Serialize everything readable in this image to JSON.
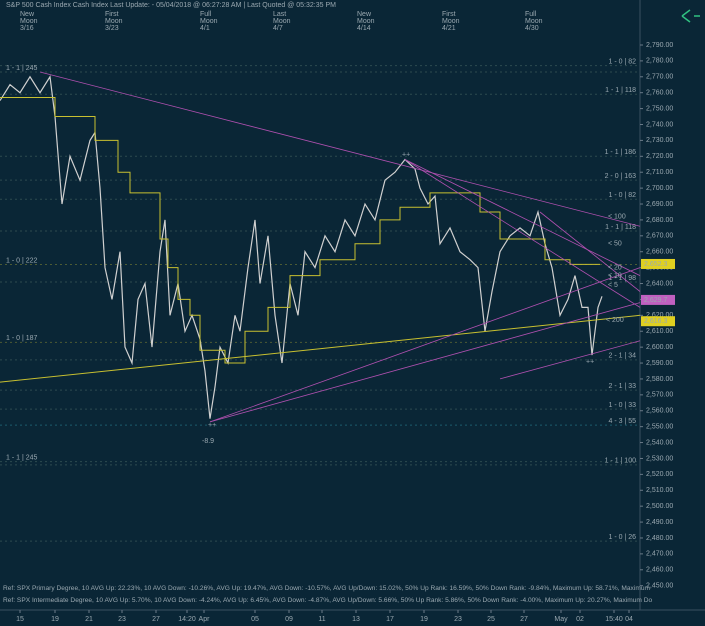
{
  "chart_data": {
    "type": "line",
    "title": "S&P 500 Cash Index   Cash Index   Last Update: - 05/04/2018 @ 06:27:28 AM | Last Quoted @ 05:32:35 PM",
    "moon_phases": [
      {
        "x": 20,
        "lines": [
          "New",
          "Moon",
          "3/16"
        ],
        "color": "#3f8f3f"
      },
      {
        "x": 105,
        "lines": [
          "First",
          "Moon",
          "3/23"
        ],
        "color": "#9aa0a0"
      },
      {
        "x": 200,
        "lines": [
          "Full",
          "Moon",
          "4/1"
        ],
        "color": "#5fd35f"
      },
      {
        "x": 273,
        "lines": [
          "Last",
          "Moon",
          "4/7"
        ],
        "color": "#e0e0e0"
      },
      {
        "x": 357,
        "lines": [
          "New",
          "Moon",
          "4/14"
        ],
        "color": "#3f8f3f"
      },
      {
        "x": 442,
        "lines": [
          "First",
          "Moon",
          "4/21"
        ],
        "color": "#9aa0a0"
      },
      {
        "x": 525,
        "lines": [
          "Full",
          "Moon",
          "4/30"
        ],
        "color": "#5fd35f"
      }
    ],
    "xlim": [
      0,
      640
    ],
    "ylim": [
      2441,
      2812
    ],
    "xticks": [
      {
        "value": 20,
        "label": "15"
      },
      {
        "value": 55,
        "label": "19"
      },
      {
        "value": 89,
        "label": "21"
      },
      {
        "value": 122,
        "label": "23"
      },
      {
        "value": 156,
        "label": "27"
      },
      {
        "value": 187,
        "label": "14:20"
      },
      {
        "value": 204,
        "label": "Apr"
      },
      {
        "value": 255,
        "label": "05"
      },
      {
        "value": 289,
        "label": "09"
      },
      {
        "value": 322,
        "label": "11"
      },
      {
        "value": 356,
        "label": "13"
      },
      {
        "value": 390,
        "label": "17"
      },
      {
        "value": 424,
        "label": "19"
      },
      {
        "value": 458,
        "label": "23"
      },
      {
        "value": 491,
        "label": "25"
      },
      {
        "value": 524,
        "label": "27"
      },
      {
        "value": 561,
        "label": "May"
      },
      {
        "value": 580,
        "label": "02"
      },
      {
        "value": 614,
        "label": "15:40"
      },
      {
        "value": 629,
        "label": "04"
      }
    ],
    "yticks": [
      {
        "value": 2450,
        "label": "2,450.00"
      },
      {
        "value": 2460,
        "label": "2,460.00"
      },
      {
        "value": 2470,
        "label": "2,470.00"
      },
      {
        "value": 2480,
        "label": "2,480.00"
      },
      {
        "value": 2490,
        "label": "2,490.00"
      },
      {
        "value": 2500,
        "label": "2,500.00"
      },
      {
        "value": 2510,
        "label": "2,510.00"
      },
      {
        "value": 2520,
        "label": "2,520.00"
      },
      {
        "value": 2530,
        "label": "2,530.00"
      },
      {
        "value": 2540,
        "label": "2,540.00"
      },
      {
        "value": 2550,
        "label": "2,550.00"
      },
      {
        "value": 2560,
        "label": "2,560.00"
      },
      {
        "value": 2570,
        "label": "2,570.00"
      },
      {
        "value": 2580,
        "label": "2,580.00"
      },
      {
        "value": 2590,
        "label": "2,590.00"
      },
      {
        "value": 2600,
        "label": "2,600.00"
      },
      {
        "value": 2610,
        "label": "2,610.00"
      },
      {
        "value": 2620,
        "label": "2,620.00"
      },
      {
        "value": 2630,
        "label": "2,630.00"
      },
      {
        "value": 2640,
        "label": "2,640.00"
      },
      {
        "value": 2650,
        "label": "2,650.00"
      },
      {
        "value": 2660,
        "label": "2,660.00"
      },
      {
        "value": 2670,
        "label": "2,670.00"
      },
      {
        "value": 2680,
        "label": "2,680.00"
      },
      {
        "value": 2690,
        "label": "2,690.00"
      },
      {
        "value": 2700,
        "label": "2,700.00"
      },
      {
        "value": 2710,
        "label": "2,710.00"
      },
      {
        "value": 2720,
        "label": "2,720.00"
      },
      {
        "value": 2730,
        "label": "2,730.00"
      },
      {
        "value": 2740,
        "label": "2,740.00"
      },
      {
        "value": 2750,
        "label": "2,750.00"
      },
      {
        "value": 2760,
        "label": "2,760.00"
      },
      {
        "value": 2770,
        "label": "2,770.00"
      },
      {
        "value": 2780,
        "label": "2,780.00"
      },
      {
        "value": 2790,
        "label": "2,790.00"
      }
    ],
    "series": [
      {
        "color": "#d0d0d0",
        "width": 1.2,
        "x": [
          0,
          10,
          20,
          30,
          40,
          50,
          55,
          62,
          70,
          80,
          90,
          95,
          100,
          105,
          112,
          120,
          125,
          132,
          138,
          145,
          152,
          160,
          165,
          170,
          178,
          185,
          192,
          200,
          205,
          210,
          215,
          220,
          228,
          235,
          240,
          248,
          255,
          260,
          268,
          275,
          282,
          290,
          298,
          305,
          315,
          325,
          335,
          345,
          355,
          365,
          375,
          385,
          395,
          405,
          415,
          420,
          428,
          435,
          440,
          450,
          460,
          470,
          478,
          485,
          492,
          500,
          510,
          520,
          530,
          538,
          545,
          552,
          560,
          568,
          575,
          582,
          588,
          592,
          598,
          602
        ],
        "values": [
          2755,
          2765,
          2760,
          2770,
          2760,
          2770,
          2745,
          2690,
          2720,
          2705,
          2730,
          2735,
          2700,
          2650,
          2630,
          2660,
          2600,
          2590,
          2630,
          2640,
          2600,
          2660,
          2680,
          2620,
          2640,
          2610,
          2620,
          2605,
          2585,
          2555,
          2575,
          2600,
          2590,
          2620,
          2610,
          2650,
          2680,
          2640,
          2670,
          2620,
          2590,
          2640,
          2620,
          2660,
          2650,
          2670,
          2660,
          2680,
          2670,
          2690,
          2680,
          2705,
          2710,
          2718,
          2712,
          2700,
          2690,
          2695,
          2665,
          2675,
          2660,
          2655,
          2650,
          2610,
          2635,
          2660,
          2670,
          2675,
          2670,
          2685,
          2665,
          2650,
          2620,
          2630,
          2645,
          2625,
          2625,
          2595,
          2625,
          2632
        ]
      },
      {
        "color": "#c8c030",
        "width": 1,
        "x": [
          0,
          55,
          55,
          95,
          95,
          118,
          118,
          130,
          130,
          160,
          160,
          168,
          168,
          178,
          178,
          190,
          190,
          200,
          200,
          225,
          225,
          245,
          245,
          268,
          268,
          290,
          290,
          320,
          320,
          355,
          355,
          380,
          380,
          400,
          400,
          430,
          430,
          480,
          480,
          500,
          500,
          545,
          545,
          570,
          570,
          600
        ],
        "values": [
          2757,
          2757,
          2745,
          2745,
          2730,
          2730,
          2710,
          2710,
          2697,
          2697,
          2668,
          2668,
          2650,
          2650,
          2630,
          2630,
          2620,
          2620,
          2598,
          2598,
          2590,
          2590,
          2610,
          2610,
          2625,
          2625,
          2645,
          2645,
          2655,
          2655,
          2665,
          2665,
          2680,
          2680,
          2688,
          2688,
          2697,
          2697,
          2685,
          2685,
          2668,
          2668,
          2655,
          2655,
          2652,
          2652
        ]
      },
      {
        "color": "#c8c030",
        "width": 1,
        "x": [
          0,
          640
        ],
        "values": [
          2578,
          2620
        ]
      },
      {
        "color": "#b050b0",
        "width": 0.8,
        "x": [
          40,
          640
        ],
        "values": [
          2773,
          2676
        ]
      },
      {
        "color": "#b050b0",
        "width": 0.8,
        "x": [
          405,
          640
        ],
        "values": [
          2718,
          2645
        ]
      },
      {
        "color": "#b050b0",
        "width": 0.8,
        "x": [
          405,
          640
        ],
        "values": [
          2718,
          2625
        ]
      },
      {
        "color": "#b050b0",
        "width": 0.8,
        "x": [
          210,
          640
        ],
        "values": [
          2553,
          2650
        ]
      },
      {
        "color": "#b050b0",
        "width": 0.8,
        "x": [
          210,
          640
        ],
        "values": [
          2553,
          2628
        ]
      },
      {
        "color": "#b050b0",
        "width": 0.8,
        "x": [
          540,
          640
        ],
        "values": [
          2685,
          2635
        ]
      },
      {
        "color": "#b050b0",
        "width": 0.8,
        "x": [
          500,
          640
        ],
        "values": [
          2580,
          2604
        ]
      }
    ],
    "levels": [
      {
        "value": 2777,
        "label": "1 - 0 | 82",
        "side": "right",
        "color": "#6f8f7f"
      },
      {
        "value": 2759,
        "label": "1 - 1 | 118",
        "side": "right",
        "color": "#6f8f7f"
      },
      {
        "value": 2720,
        "label": "1 - 1 | 186",
        "side": "right",
        "color": "#6f8f7f"
      },
      {
        "value": 2705,
        "label": "2 - 0 | 163",
        "side": "right",
        "color": "#6f8f7f"
      },
      {
        "value": 2693,
        "label": "1 - 0 | 82",
        "side": "right",
        "color": "#6f8f7f"
      },
      {
        "value": 2673,
        "label": "1 - 1 | 118",
        "side": "right",
        "color": "#6f8f7f"
      },
      {
        "value": 2641,
        "label": "1 - 1 | 98",
        "side": "right",
        "color": "#6f8f7f"
      },
      {
        "value": 2592,
        "label": "2 - 1 | 34",
        "side": "right",
        "color": "#6f8f7f"
      },
      {
        "value": 2573,
        "label": "2 - 1 | 33",
        "side": "right",
        "color": "#6f8f7f"
      },
      {
        "value": 2561,
        "label": "1 - 0 | 33",
        "side": "right",
        "color": "#6f8f7f"
      },
      {
        "value": 2551,
        "label": "4 - 3 | 55",
        "side": "right",
        "color": "#40c0d0"
      },
      {
        "value": 2526,
        "label": "1 - 1 | 100",
        "side": "right",
        "color": "#6f8f7f"
      },
      {
        "value": 2478,
        "label": "1 - 0 | 26",
        "side": "right",
        "color": "#6f8f7f"
      },
      {
        "value": 2773,
        "label": "1 - 1 | 245",
        "side": "left",
        "color": "#6f8f7f"
      },
      {
        "value": 2652,
        "label": "1 - 0 | 222",
        "side": "left",
        "color": "#c8c030"
      },
      {
        "value": 2603,
        "label": "1 - 0 | 187",
        "side": "left",
        "color": "#c8c030"
      },
      {
        "value": 2528,
        "label": "1 - 1 | 245",
        "side": "left",
        "color": "#6f8f7f"
      }
    ],
    "annotations": [
      {
        "text": "< 100",
        "x": 608,
        "y": 2682,
        "color": "#e0e000"
      },
      {
        "text": "< 50",
        "x": 608,
        "y": 2665,
        "color": "#e0e000"
      },
      {
        "text": "< 20",
        "x": 608,
        "y": 2650,
        "color": "#e0e000"
      },
      {
        "text": "< 10",
        "x": 608,
        "y": 2645,
        "color": "#e0e000"
      },
      {
        "text": "< 5",
        "x": 608,
        "y": 2639,
        "color": "#e0e000"
      },
      {
        "text": "< 200",
        "x": 606,
        "y": 2617,
        "color": "#e0e000"
      },
      {
        "text": "-8.9",
        "x": 202,
        "y": 2541,
        "color": "#e0e000"
      },
      {
        "text": "++",
        "x": 208,
        "y": 2551,
        "color": "#40c0d0"
      },
      {
        "text": "++",
        "x": 402,
        "y": 2721,
        "color": "#40c0d0"
      },
      {
        "text": "++",
        "x": 586,
        "y": 2591,
        "color": "#40c0d0"
      }
    ],
    "price_labels": [
      {
        "value": 2652.3,
        "label": "2,652.3",
        "color": "#e0d020"
      },
      {
        "value": 2629.7,
        "label": "2,629.7",
        "color": "#c060c0"
      },
      {
        "value": 2616.3,
        "label": "2,616.3",
        "color": "#e0d020"
      }
    ],
    "footnotes": [
      {
        "text": "Ref: SPX Primary Degree, 10 AVG Up: 22.23%, 10 AVG Down: -10.26%, AVG Up: 19.47%, AVG Down: -10.57%, AVG Up/Down: 15.02%, 50%  Up Rank: 16.59%, 50% Down Rank: -9.84%, Maximum Up: 58.71%, Maximum",
        "color": "#e0e000"
      },
      {
        "text": "Ref: SPX Intermediate Degree, 10 AVG Up: 5.70%, 10 AVG Down: -4.24%, AVG Up: 6.45%, AVG Down: -4.87%, AVG Up/Down: 5.66%, 50%  Up Rank: 5.86%, 50% Down Rank: -4.00%, Maximum Up: 20.27%, Maximum Do",
        "color": "#40c0e0"
      }
    ]
  }
}
